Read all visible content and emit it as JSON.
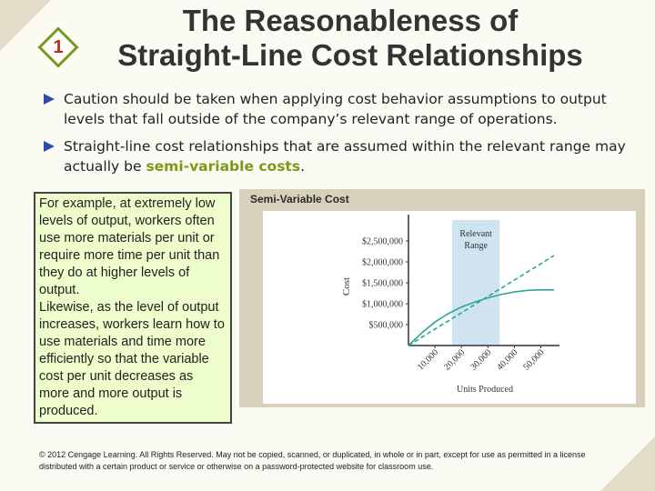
{
  "slide": {
    "number": "1",
    "title_line1": "The Reasonableness of",
    "title_line2": "Straight-Line Cost Relationships"
  },
  "bullets": [
    {
      "text": "Caution should be taken when applying cost behavior assumptions to output levels that  fall outside of the company’s relevant range of operations."
    },
    {
      "prefix": "Straight-line cost relationships that are assumed within the relevant range may actually be ",
      "highlight": "semi-variable costs",
      "suffix": "."
    }
  ],
  "example_box": {
    "para1": "For example, at extremely low levels of output, workers often use more materials per unit or require more time per unit than they do at higher levels of output.",
    "para2": "Likewise, as the level of output increases, workers learn how to use materials and time more efficiently so that the variable cost per unit decreases as more and more output is produced."
  },
  "chart_data": {
    "type": "line",
    "title": "Semi-Variable Cost",
    "xlabel": "Units Produced",
    "ylabel": "Cost",
    "x_ticks": [
      "10,000",
      "20,000",
      "30,000",
      "40,000",
      "50,000"
    ],
    "y_ticks": [
      "$500,000",
      "$1,000,000",
      "$1,500,000",
      "$2,000,000",
      "$2,500,000"
    ],
    "xlim": [
      0,
      55000
    ],
    "ylim": [
      0,
      3000000
    ],
    "relevant_range": {
      "label_line1": "Relevant",
      "label_line2": "Range",
      "x_start": 16500,
      "x_end": 34500
    },
    "series": [
      {
        "style": "dashed",
        "x": [
          0,
          55000
        ],
        "y": [
          0,
          2150000
        ]
      },
      {
        "style": "solid",
        "x": [
          0,
          5000,
          10000,
          15000,
          20000,
          25000,
          30000,
          35000,
          40000,
          45000,
          50000,
          55000
        ],
        "y": [
          0,
          300000,
          560000,
          760000,
          920000,
          1040000,
          1140000,
          1220000,
          1280000,
          1320000,
          1330000,
          1330000
        ]
      }
    ],
    "colors": {
      "line": "#2fa59a",
      "range_fill": "#cfe3f1",
      "plot_bg": "#ffffff"
    }
  },
  "footer": {
    "text": "© 2012 Cengage Learning. All Rights Reserved. May not be copied, scanned, or duplicated, in whole or in part, except for use as permitted in a license distributed with a certain product or service or otherwise on a password-protected website for classroom use."
  }
}
